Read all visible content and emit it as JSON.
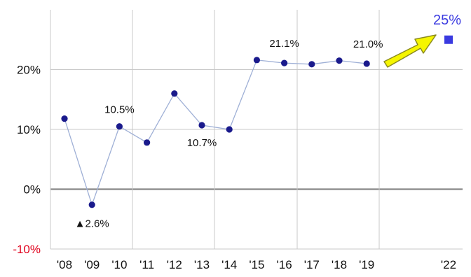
{
  "chart_data": {
    "type": "line",
    "title": "",
    "xlabel": "",
    "ylabel": "",
    "categories": [
      "'08",
      "'09",
      "'10",
      "'11",
      "'12",
      "'13",
      "'14",
      "'15",
      "'16",
      "'17",
      "'18",
      "'19",
      "'22"
    ],
    "ylim": [
      -10,
      30
    ],
    "yticks": [
      {
        "value": -10,
        "label": "-10%"
      },
      {
        "value": 0,
        "label": "0%"
      },
      {
        "value": 10,
        "label": "10%"
      },
      {
        "value": 20,
        "label": "20%"
      }
    ],
    "grid": true,
    "series": [
      {
        "values": [
          11.8,
          -2.6,
          10.5,
          7.8,
          16.0,
          10.7,
          10.0,
          21.6,
          21.1,
          20.9,
          21.5,
          21.0,
          null
        ],
        "color": "#1a1a8c",
        "line_color": "#9fb0d6"
      }
    ],
    "target": {
      "category": "'22",
      "value": 25,
      "label": "25%",
      "color": "#3a3ae0"
    },
    "annotations": [
      {
        "category": "'09",
        "text": "▲2.6%"
      },
      {
        "category": "'10",
        "text": "10.5%"
      },
      {
        "category": "'13",
        "text": "10.7%"
      },
      {
        "category": "'16",
        "text": "21.1%"
      },
      {
        "category": "'19",
        "text": "21.0%"
      }
    ],
    "arrow": {
      "color": "#f5f500",
      "outline": "#8a8a20"
    },
    "colors": {
      "zero_line": "#888888",
      "grid": "#c8c8c8",
      "negative_tick": "#e0001b"
    }
  }
}
